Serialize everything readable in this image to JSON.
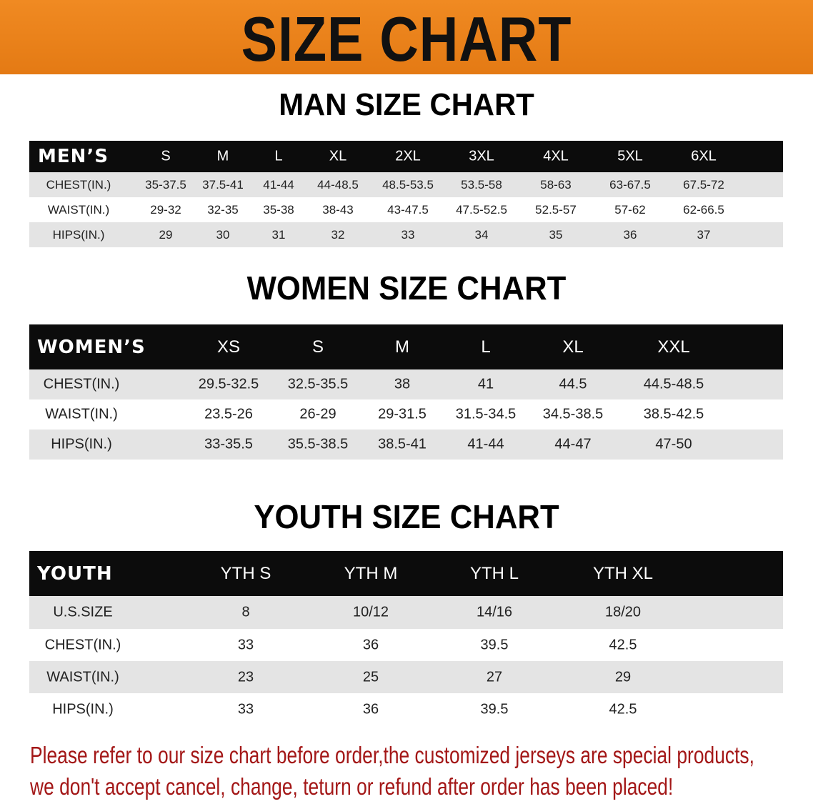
{
  "title": "SIZE CHART",
  "accent_color": "#e8821c",
  "men": {
    "title": "MAN SIZE CHART",
    "header": "MEN’S",
    "sizes": [
      "S",
      "M",
      "L",
      "XL",
      "2XL",
      "3XL",
      "4XL",
      "5XL",
      "6XL"
    ],
    "rows": [
      {
        "label": "CHEST(IN.)",
        "values": [
          "35-37.5",
          "37.5-41",
          "41-44",
          "44-48.5",
          "48.5-53.5",
          "53.5-58",
          "58-63",
          "63-67.5",
          "67.5-72"
        ]
      },
      {
        "label": "WAIST(IN.)",
        "values": [
          "29-32",
          "32-35",
          "35-38",
          "38-43",
          "43-47.5",
          "47.5-52.5",
          "52.5-57",
          "57-62",
          "62-66.5"
        ]
      },
      {
        "label": "HIPS(IN.)",
        "values": [
          "29",
          "30",
          "31",
          "32",
          "33",
          "34",
          "35",
          "36",
          "37"
        ]
      }
    ]
  },
  "women": {
    "title": "WOMEN SIZE CHART",
    "header": "WOMEN’S",
    "sizes": [
      "XS",
      "S",
      "M",
      "L",
      "XL",
      "XXL"
    ],
    "rows": [
      {
        "label": "CHEST(IN.)",
        "values": [
          "29.5-32.5",
          "32.5-35.5",
          "38",
          "41",
          "44.5",
          "44.5-48.5"
        ]
      },
      {
        "label": "WAIST(IN.)",
        "values": [
          "23.5-26",
          "26-29",
          "29-31.5",
          "31.5-34.5",
          "34.5-38.5",
          "38.5-42.5"
        ]
      },
      {
        "label": "HIPS(IN.)",
        "values": [
          "33-35.5",
          "35.5-38.5",
          "38.5-41",
          "41-44",
          "44-47",
          "47-50"
        ]
      }
    ]
  },
  "youth": {
    "title": "YOUTH SIZE CHART",
    "header": "YOUTH",
    "sizes": [
      "YTH S",
      "YTH M",
      "YTH L",
      "YTH XL"
    ],
    "rows": [
      {
        "label": "U.S.SIZE",
        "values": [
          "8",
          "10/12",
          "14/16",
          "18/20"
        ]
      },
      {
        "label": "CHEST(IN.)",
        "values": [
          "33",
          "36",
          "39.5",
          "42.5"
        ]
      },
      {
        "label": "WAIST(IN.)",
        "values": [
          "23",
          "25",
          "27",
          "29"
        ]
      },
      {
        "label": "HIPS(IN.)",
        "values": [
          "33",
          "36",
          "39.5",
          "42.5"
        ]
      }
    ]
  },
  "note": {
    "line1": "Please refer to our size chart before order,the customized jerseys are special products,",
    "line2": "we don't accept cancel, change, teturn or refund after order has been placed!",
    "color": "#a31717"
  }
}
